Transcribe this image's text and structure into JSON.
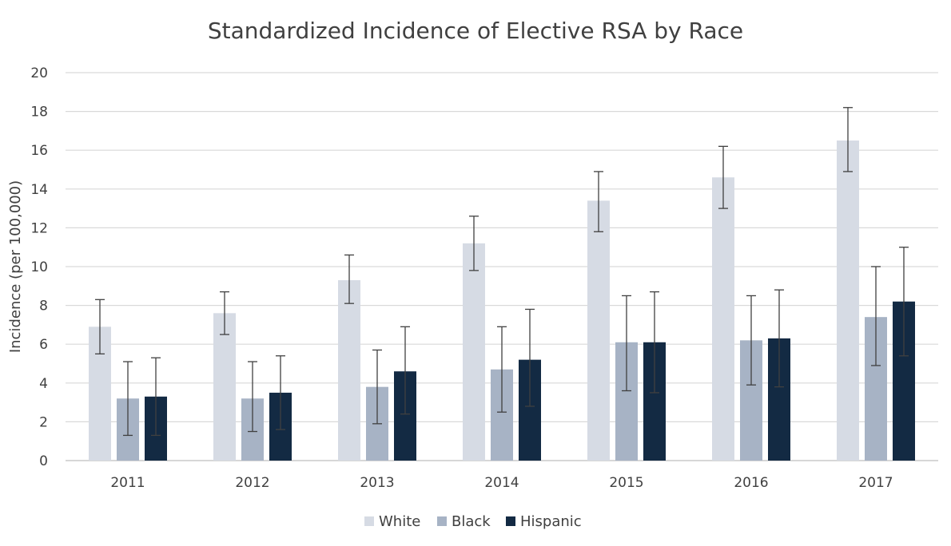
{
  "chart_data": {
    "type": "bar",
    "title": "Standardized Incidence of Elective RSA by Race",
    "xlabel": "",
    "ylabel": "Incidence (per 100,000)",
    "ylim": [
      0,
      20
    ],
    "yticks": [
      0,
      2,
      4,
      6,
      8,
      10,
      12,
      14,
      16,
      18,
      20
    ],
    "grid": true,
    "legend_position": "bottom",
    "categories": [
      "2011",
      "2012",
      "2013",
      "2014",
      "2015",
      "2016",
      "2017"
    ],
    "series": [
      {
        "name": "White",
        "color": "#d6dbe4",
        "values": [
          6.9,
          7.6,
          9.3,
          11.2,
          13.4,
          14.6,
          16.5
        ],
        "error_low": [
          5.5,
          6.5,
          8.1,
          9.8,
          11.8,
          13.0,
          14.9
        ],
        "error_high": [
          8.3,
          8.7,
          10.6,
          12.6,
          14.9,
          16.2,
          18.2
        ]
      },
      {
        "name": "Black",
        "color": "#a7b3c5",
        "values": [
          3.2,
          3.2,
          3.8,
          4.7,
          6.1,
          6.2,
          7.4
        ],
        "error_low": [
          1.3,
          1.5,
          1.9,
          2.5,
          3.6,
          3.9,
          4.9
        ],
        "error_high": [
          5.1,
          5.1,
          5.7,
          6.9,
          8.5,
          8.5,
          10.0
        ]
      },
      {
        "name": "Hispanic",
        "color": "#132a43",
        "values": [
          3.3,
          3.5,
          4.6,
          5.2,
          6.1,
          6.3,
          8.2
        ],
        "error_low": [
          1.3,
          1.6,
          2.4,
          2.8,
          3.5,
          3.8,
          5.4
        ],
        "error_high": [
          5.3,
          5.4,
          6.9,
          7.8,
          8.7,
          8.8,
          11.0
        ]
      }
    ]
  }
}
